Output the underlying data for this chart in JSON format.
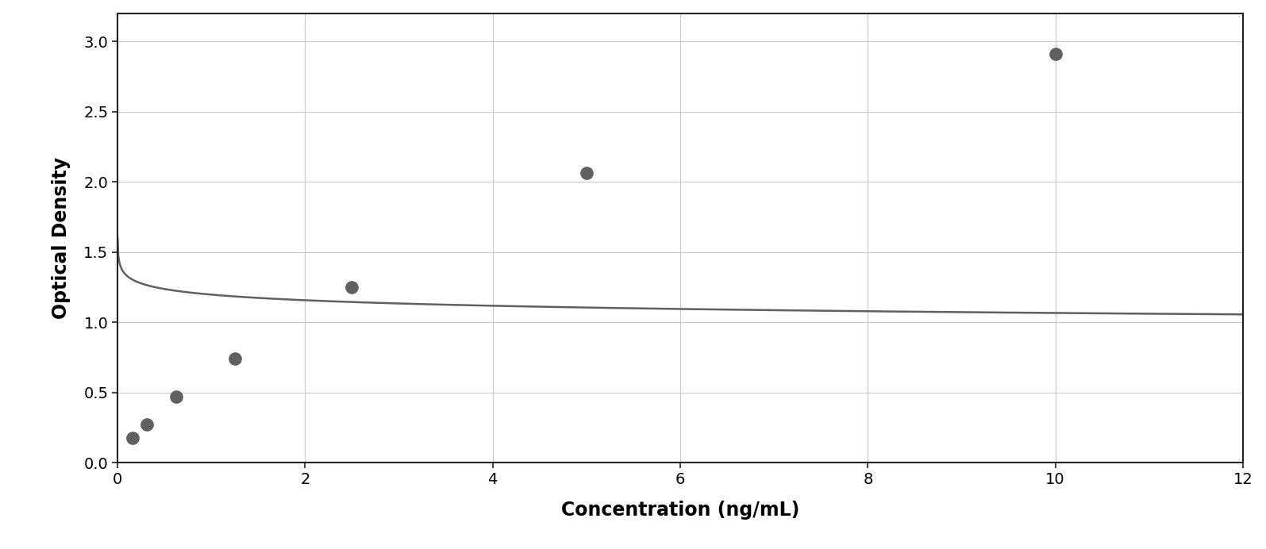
{
  "x_data": [
    0.156,
    0.313,
    0.625,
    1.25,
    2.5,
    5.0,
    10.0
  ],
  "y_data": [
    0.175,
    0.27,
    0.47,
    0.74,
    1.25,
    2.06,
    2.91
  ],
  "point_color": "#606060",
  "line_color": "#606060",
  "xlabel": "Concentration (ng/mL)",
  "ylabel": "Optical Density",
  "xlim": [
    0,
    12
  ],
  "ylim": [
    0,
    3.2
  ],
  "xticks": [
    0,
    2,
    4,
    6,
    8,
    10,
    12
  ],
  "yticks": [
    0,
    0.5,
    1.0,
    1.5,
    2.0,
    2.5,
    3.0
  ],
  "xlabel_fontsize": 17,
  "ylabel_fontsize": 17,
  "tick_fontsize": 14,
  "marker_size": 11,
  "line_width": 1.8,
  "background_color": "#ffffff",
  "grid_color": "#c8c8c8",
  "spine_color": "#222222",
  "figure_width": 15.95,
  "figure_height": 6.92,
  "figure_dpi": 100
}
